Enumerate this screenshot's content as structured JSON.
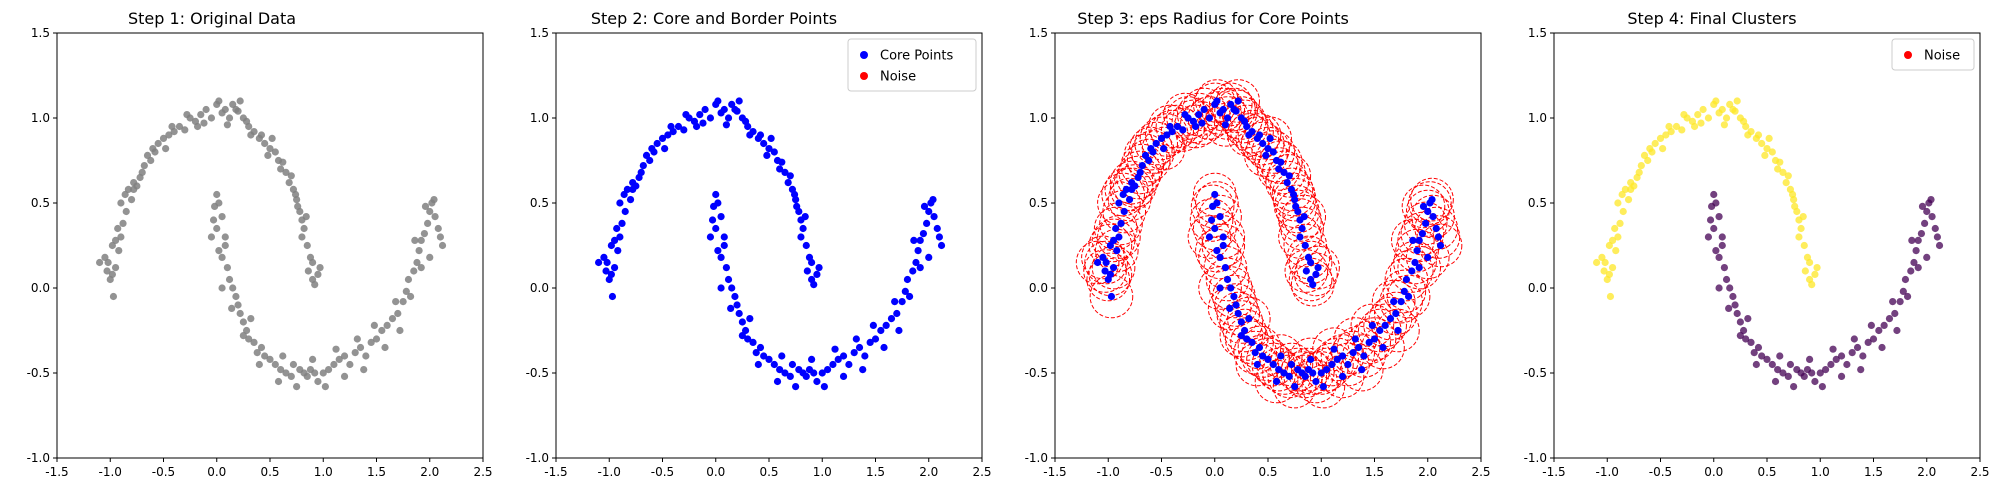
{
  "chart_data": [
    {
      "type": "scatter",
      "title": "Step 1: Original Data",
      "xlim": [
        -1.5,
        2.5
      ],
      "ylim": [
        -1.0,
        1.5
      ],
      "xticks": [
        "-1.5",
        "-1.0",
        "-0.5",
        "0.0",
        "0.5",
        "1.0",
        "1.5",
        "2.0",
        "2.5"
      ],
      "yticks": [
        "-1.0",
        "-0.5",
        "0.0",
        "0.5",
        "1.0",
        "1.5"
      ],
      "grid": false,
      "legend": null,
      "series": [
        {
          "color": "#808080",
          "opacity": 0.85,
          "dataset": "all"
        }
      ]
    },
    {
      "type": "scatter",
      "title": "Step 2: Core and Border Points",
      "xlim": [
        -1.5,
        2.5
      ],
      "ylim": [
        -1.0,
        1.5
      ],
      "xticks": [
        "-1.5",
        "-1.0",
        "-0.5",
        "0.0",
        "0.5",
        "1.0",
        "1.5",
        "2.0",
        "2.5"
      ],
      "yticks": [
        "-1.0",
        "-0.5",
        "0.0",
        "0.5",
        "1.0",
        "1.5"
      ],
      "grid": false,
      "legend": {
        "placement": "top-right",
        "entries": [
          {
            "label": "Core Points",
            "color": "#0000ff"
          },
          {
            "label": "Noise",
            "color": "#ff0000"
          }
        ]
      },
      "series": [
        {
          "name": "Core Points",
          "color": "#0000ff",
          "opacity": 1,
          "dataset": "all"
        }
      ]
    },
    {
      "type": "scatter",
      "title": "Step 3: eps Radius for Core Points",
      "xlim": [
        -1.5,
        2.5
      ],
      "ylim": [
        -1.0,
        1.5
      ],
      "xticks": [
        "-1.5",
        "-1.0",
        "-0.5",
        "0.0",
        "0.5",
        "1.0",
        "1.5",
        "2.0",
        "2.5"
      ],
      "yticks": [
        "-1.0",
        "-0.5",
        "0.0",
        "0.5",
        "1.0",
        "1.5"
      ],
      "grid": false,
      "legend": null,
      "eps": 0.2,
      "circle_color": "#ff0000",
      "series": [
        {
          "color": "#0000ff",
          "opacity": 1,
          "dataset": "all"
        }
      ]
    },
    {
      "type": "scatter",
      "title": "Step 4: Final Clusters",
      "xlim": [
        -1.5,
        2.5
      ],
      "ylim": [
        -1.0,
        1.5
      ],
      "xticks": [
        "-1.5",
        "-1.0",
        "-0.5",
        "0.0",
        "0.5",
        "1.0",
        "1.5",
        "2.0",
        "2.5"
      ],
      "yticks": [
        "-1.0",
        "-0.5",
        "0.0",
        "0.5",
        "1.0",
        "1.5"
      ],
      "grid": false,
      "legend": {
        "placement": "top-right",
        "entries": [
          {
            "label": "Noise",
            "color": "#ff0000"
          }
        ]
      },
      "series": [
        {
          "color": "#fde725",
          "opacity": 0.75,
          "dataset": "upper"
        },
        {
          "color": "#440154",
          "opacity": 0.75,
          "dataset": "lower"
        }
      ]
    }
  ],
  "points": {
    "upper": [
      [
        -1.05,
        0.18
      ],
      [
        -1.02,
        0.15
      ],
      [
        -1.0,
        0.05
      ],
      [
        -0.98,
        0.08
      ],
      [
        -0.97,
        -0.05
      ],
      [
        -0.95,
        0.12
      ],
      [
        -0.92,
        0.22
      ],
      [
        -0.95,
        0.28
      ],
      [
        -0.9,
        0.3
      ],
      [
        -0.93,
        0.35
      ],
      [
        -0.88,
        0.38
      ],
      [
        -0.85,
        0.45
      ],
      [
        -0.9,
        0.5
      ],
      [
        -0.83,
        0.58
      ],
      [
        -0.8,
        0.52
      ],
      [
        -0.78,
        0.62
      ],
      [
        -0.75,
        0.6
      ],
      [
        -0.7,
        0.68
      ],
      [
        -0.68,
        0.72
      ],
      [
        -0.65,
        0.78
      ],
      [
        -0.62,
        0.75
      ],
      [
        -0.58,
        0.8
      ],
      [
        -0.55,
        0.85
      ],
      [
        -0.5,
        0.88
      ],
      [
        -0.48,
        0.82
      ],
      [
        -0.45,
        0.9
      ],
      [
        -0.4,
        0.92
      ],
      [
        -0.35,
        0.95
      ],
      [
        -0.3,
        0.93
      ],
      [
        -0.25,
        1.0
      ],
      [
        -0.2,
        0.98
      ],
      [
        -0.15,
        1.02
      ],
      [
        -0.1,
        1.05
      ],
      [
        -0.05,
        1.0
      ],
      [
        0.0,
        1.08
      ],
      [
        0.02,
        1.1
      ],
      [
        0.05,
        1.03
      ],
      [
        0.08,
        1.05
      ],
      [
        0.12,
        1.0
      ],
      [
        0.15,
        1.08
      ],
      [
        0.18,
        1.05
      ],
      [
        0.22,
        1.1
      ],
      [
        0.25,
        1.0
      ],
      [
        0.28,
        0.98
      ],
      [
        0.3,
        0.95
      ],
      [
        0.35,
        0.92
      ],
      [
        0.4,
        0.88
      ],
      [
        0.42,
        0.9
      ],
      [
        0.45,
        0.85
      ],
      [
        0.5,
        0.82
      ],
      [
        0.55,
        0.8
      ],
      [
        0.58,
        0.75
      ],
      [
        0.6,
        0.7
      ],
      [
        0.65,
        0.68
      ],
      [
        0.68,
        0.62
      ],
      [
        0.72,
        0.58
      ],
      [
        0.75,
        0.52
      ],
      [
        0.78,
        0.45
      ],
      [
        0.8,
        0.4
      ],
      [
        0.82,
        0.35
      ],
      [
        0.8,
        0.3
      ],
      [
        0.85,
        0.25
      ],
      [
        0.88,
        0.18
      ],
      [
        0.86,
        0.1
      ],
      [
        0.9,
        0.05
      ],
      [
        0.95,
        0.08
      ],
      [
        0.92,
        0.02
      ],
      [
        0.97,
        0.12
      ],
      [
        -1.1,
        0.15
      ],
      [
        -0.98,
        0.25
      ],
      [
        -0.86,
        0.55
      ],
      [
        -0.72,
        0.65
      ],
      [
        -0.6,
        0.82
      ],
      [
        -0.42,
        0.95
      ],
      [
        -0.28,
        1.02
      ],
      [
        -0.12,
        0.97
      ],
      [
        0.1,
        0.96
      ],
      [
        0.32,
        0.9
      ],
      [
        0.48,
        0.78
      ],
      [
        0.62,
        0.74
      ],
      [
        0.7,
        0.66
      ],
      [
        0.76,
        0.48
      ],
      [
        0.84,
        0.42
      ],
      [
        0.9,
        0.15
      ],
      [
        -0.78,
        0.58
      ],
      [
        0.2,
        1.04
      ],
      [
        -0.18,
        0.95
      ],
      [
        0.52,
        0.88
      ],
      [
        -1.03,
        0.1
      ],
      [
        0.74,
        0.55
      ]
    ],
    "lower": [
      [
        -0.02,
        0.48
      ],
      [
        0.0,
        0.55
      ],
      [
        0.02,
        0.5
      ],
      [
        0.05,
        0.42
      ],
      [
        0.0,
        0.35
      ],
      [
        -0.05,
        0.3
      ],
      [
        0.02,
        0.22
      ],
      [
        0.05,
        0.18
      ],
      [
        0.08,
        0.25
      ],
      [
        0.1,
        0.12
      ],
      [
        0.12,
        0.05
      ],
      [
        0.15,
        0.0
      ],
      [
        0.18,
        -0.05
      ],
      [
        0.2,
        -0.1
      ],
      [
        0.22,
        -0.15
      ],
      [
        0.25,
        -0.2
      ],
      [
        0.28,
        -0.25
      ],
      [
        0.3,
        -0.3
      ],
      [
        0.35,
        -0.32
      ],
      [
        0.38,
        -0.38
      ],
      [
        0.42,
        -0.35
      ],
      [
        0.45,
        -0.4
      ],
      [
        0.5,
        -0.42
      ],
      [
        0.55,
        -0.45
      ],
      [
        0.6,
        -0.48
      ],
      [
        0.65,
        -0.5
      ],
      [
        0.7,
        -0.52
      ],
      [
        0.72,
        -0.45
      ],
      [
        0.78,
        -0.48
      ],
      [
        0.82,
        -0.5
      ],
      [
        0.85,
        -0.52
      ],
      [
        0.88,
        -0.48
      ],
      [
        0.92,
        -0.5
      ],
      [
        0.95,
        -0.55
      ],
      [
        1.0,
        -0.5
      ],
      [
        1.05,
        -0.48
      ],
      [
        1.1,
        -0.45
      ],
      [
        1.15,
        -0.42
      ],
      [
        1.2,
        -0.4
      ],
      [
        1.25,
        -0.45
      ],
      [
        1.3,
        -0.38
      ],
      [
        1.35,
        -0.35
      ],
      [
        1.4,
        -0.4
      ],
      [
        1.45,
        -0.32
      ],
      [
        1.5,
        -0.3
      ],
      [
        1.55,
        -0.25
      ],
      [
        1.6,
        -0.22
      ],
      [
        1.65,
        -0.18
      ],
      [
        1.7,
        -0.15
      ],
      [
        1.75,
        -0.08
      ],
      [
        1.78,
        -0.02
      ],
      [
        1.8,
        0.05
      ],
      [
        1.85,
        0.1
      ],
      [
        1.88,
        0.15
      ],
      [
        1.9,
        0.22
      ],
      [
        1.92,
        0.28
      ],
      [
        1.95,
        0.32
      ],
      [
        1.98,
        0.38
      ],
      [
        2.0,
        0.45
      ],
      [
        2.02,
        0.5
      ],
      [
        2.05,
        0.42
      ],
      [
        2.08,
        0.35
      ],
      [
        2.1,
        0.3
      ],
      [
        2.12,
        0.25
      ],
      [
        1.96,
        0.48
      ],
      [
        2.04,
        0.52
      ],
      [
        0.25,
        -0.28
      ],
      [
        0.4,
        -0.45
      ],
      [
        0.58,
        -0.55
      ],
      [
        0.75,
        -0.58
      ],
      [
        1.02,
        -0.58
      ],
      [
        1.2,
        -0.52
      ],
      [
        1.38,
        -0.48
      ],
      [
        1.58,
        -0.35
      ],
      [
        1.72,
        -0.25
      ],
      [
        1.82,
        -0.05
      ],
      [
        1.92,
        0.12
      ],
      [
        0.05,
        0.0
      ],
      [
        0.14,
        -0.12
      ],
      [
        0.32,
        -0.18
      ],
      [
        0.62,
        -0.4
      ],
      [
        0.9,
        -0.42
      ],
      [
        1.12,
        -0.36
      ],
      [
        1.32,
        -0.3
      ],
      [
        1.48,
        -0.22
      ],
      [
        1.68,
        -0.08
      ],
      [
        1.86,
        0.28
      ],
      [
        2.0,
        0.18
      ],
      [
        -0.03,
        0.4
      ],
      [
        0.08,
        0.3
      ]
    ]
  }
}
